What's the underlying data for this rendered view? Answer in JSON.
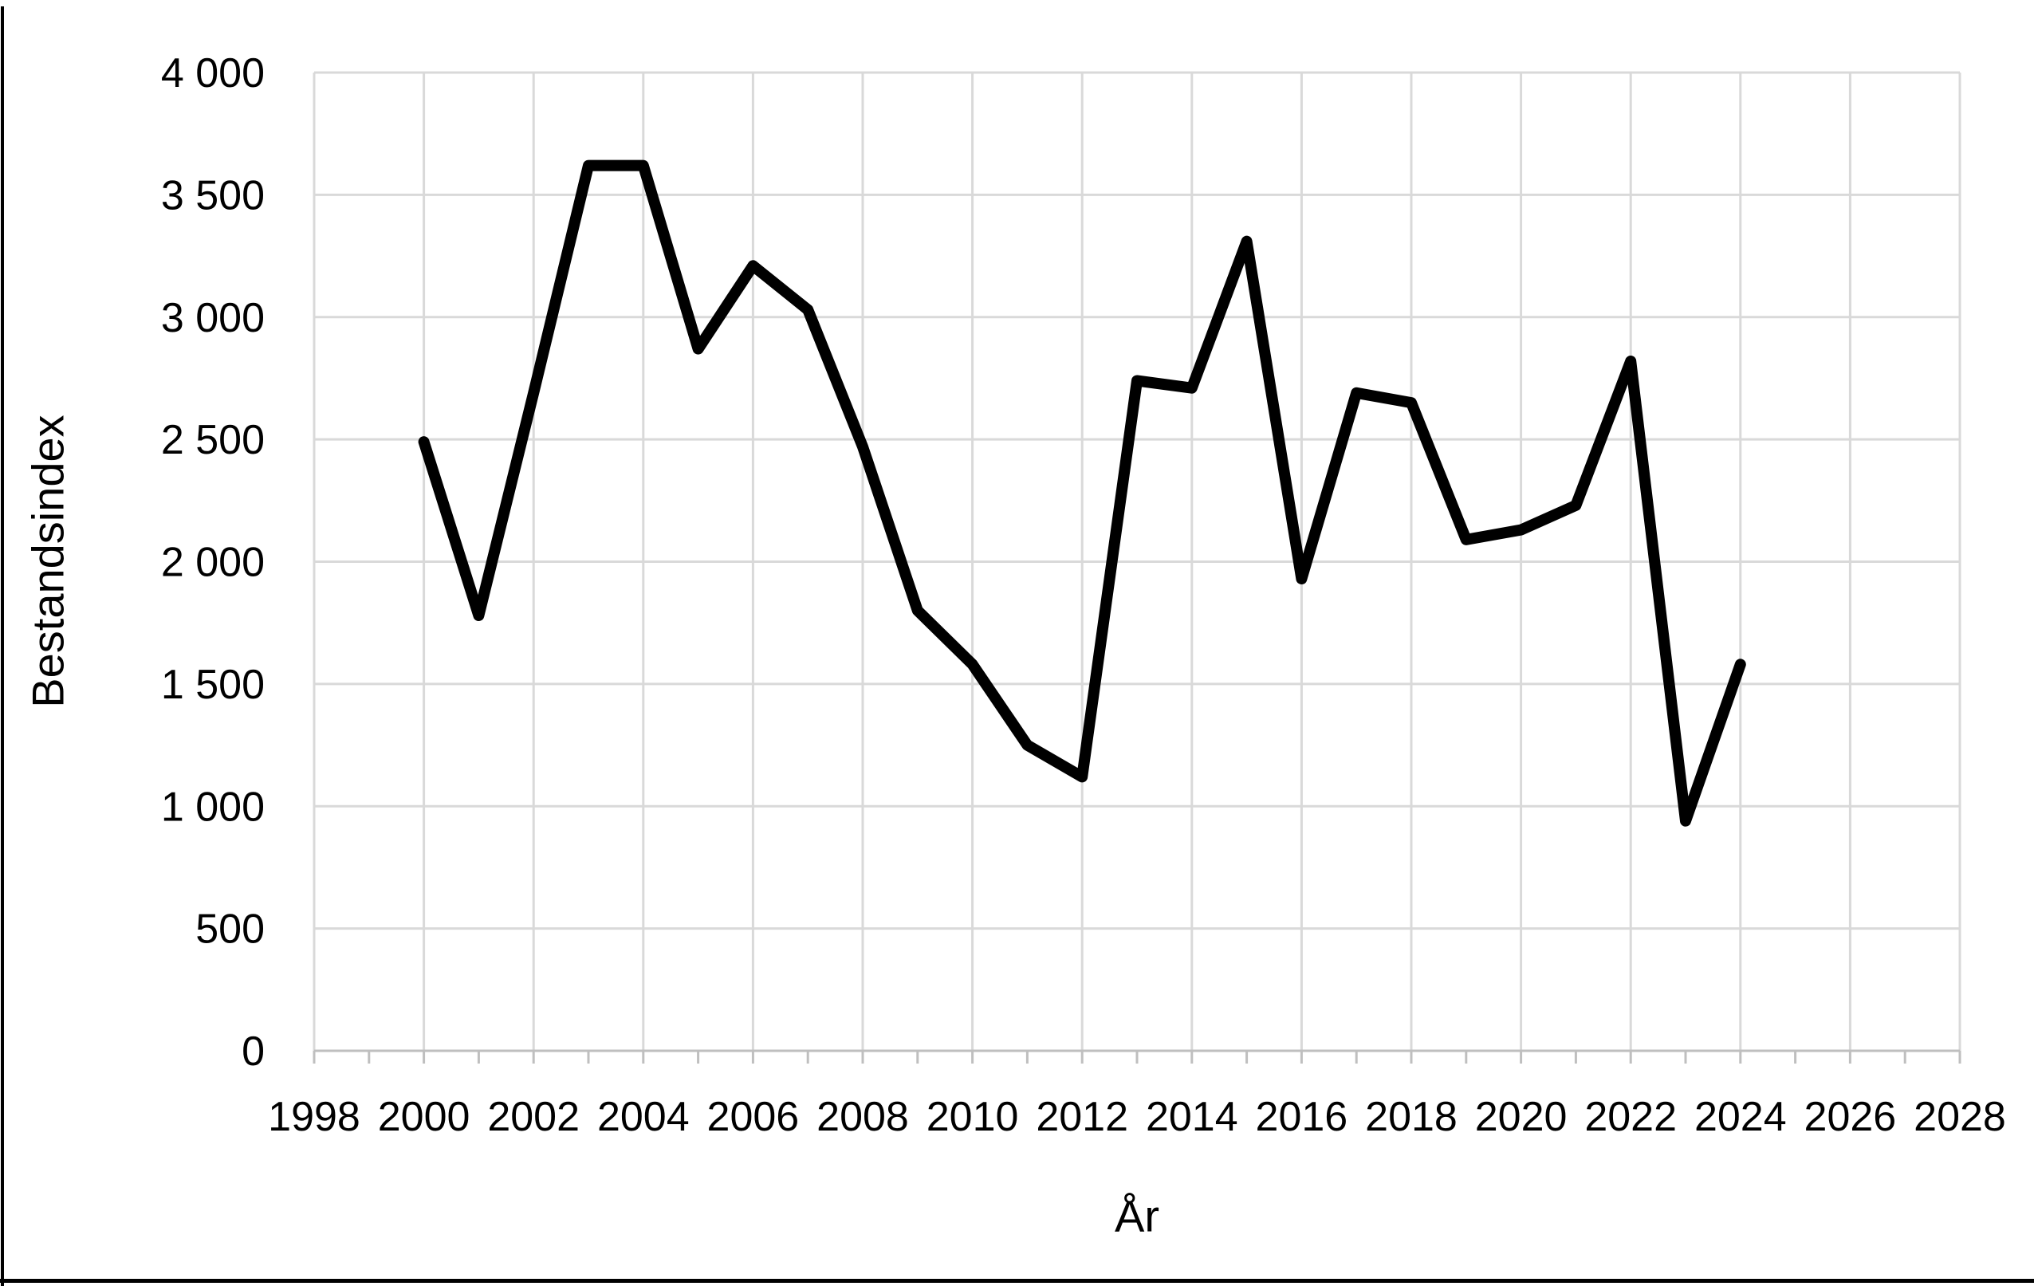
{
  "chart_data": {
    "type": "line",
    "title": "",
    "xlabel": "År",
    "ylabel": "Bestandsindex",
    "x": [
      2000,
      2001,
      2002,
      2003,
      2004,
      2005,
      2006,
      2007,
      2008,
      2009,
      2010,
      2011,
      2012,
      2013,
      2014,
      2015,
      2016,
      2017,
      2018,
      2019,
      2020,
      2021,
      2022,
      2023,
      2024
    ],
    "values": [
      2490,
      1780,
      2690,
      3620,
      3620,
      2870,
      3210,
      3030,
      2470,
      1800,
      1580,
      1250,
      1120,
      2740,
      2710,
      3310,
      1930,
      2690,
      2650,
      2090,
      2130,
      2230,
      2820,
      940,
      1580
    ],
    "series_name": "Bestandsindex",
    "xlim": [
      1998,
      2028
    ],
    "ylim": [
      0,
      4000
    ],
    "x_tick_labels": [
      "1998",
      "2000",
      "2002",
      "2004",
      "2006",
      "2008",
      "2010",
      "2012",
      "2014",
      "2016",
      "2018",
      "2020",
      "2022",
      "2024",
      "2026",
      "2028"
    ],
    "x_tick_values": [
      1998,
      2000,
      2002,
      2004,
      2006,
      2008,
      2010,
      2012,
      2014,
      2016,
      2018,
      2020,
      2022,
      2024,
      2026,
      2028
    ],
    "x_minor_tick_step": 1,
    "y_tick_labels": [
      "0",
      "500",
      "1 000",
      "1 500",
      "2 000",
      "2 500",
      "3 000",
      "3 500",
      "4 000"
    ],
    "y_tick_values": [
      0,
      500,
      1000,
      1500,
      2000,
      2500,
      3000,
      3500,
      4000
    ],
    "grid": true,
    "legend": "none",
    "colors": {
      "line": "#000000",
      "grid": "#d9d9d9",
      "axis": "#bfbfbf",
      "tick_text": "#000000",
      "page_border": "#000000",
      "background": "#ffffff"
    }
  }
}
